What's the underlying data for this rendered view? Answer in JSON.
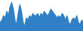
{
  "chart_data": {
    "type": "area",
    "values": [
      4,
      5,
      7,
      6,
      9,
      7,
      11,
      13,
      10,
      5,
      3,
      8,
      12,
      9,
      4,
      2,
      6,
      5,
      7,
      6,
      8,
      7,
      7,
      8,
      6,
      8,
      7,
      9,
      8,
      7,
      8,
      10,
      9,
      8,
      7,
      6,
      7,
      6,
      8,
      7,
      5,
      7,
      4,
      3,
      5,
      6,
      5,
      7,
      4,
      3,
      5,
      4
    ],
    "color": "#3080c8",
    "xlim": [
      0,
      51
    ],
    "ylim": [
      0,
      14.04
    ],
    "tick_labels": false
  }
}
